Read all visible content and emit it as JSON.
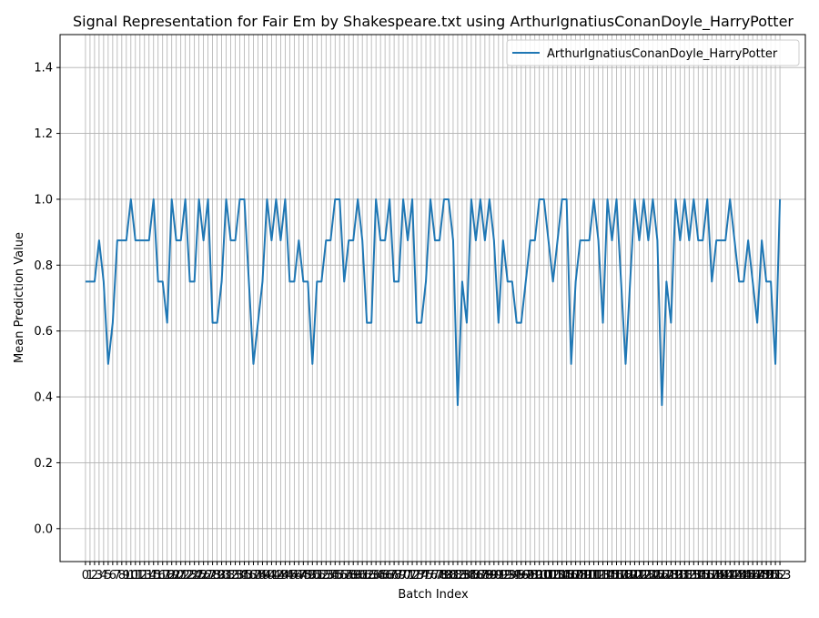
{
  "chart_data": {
    "type": "line",
    "title": "Signal Representation for Fair Em by Shakespeare.txt using ArthurIgnatiusConanDoyle_HarryPotter",
    "xlabel": "Batch Index",
    "ylabel": "Mean Prediction Value",
    "ylim": [
      -0.1,
      1.5
    ],
    "xlim": [
      -5.6,
      158.6
    ],
    "y_ticks": [
      0.0,
      0.2,
      0.4,
      0.6,
      0.8,
      1.0,
      1.2,
      1.4
    ],
    "y_tick_labels": [
      "0.0",
      "0.2",
      "0.4",
      "0.6",
      "0.8",
      "1.0",
      "1.2",
      "1.4"
    ],
    "grid": true,
    "legend_position": "top-right",
    "series": [
      {
        "name": "ArthurIgnatiusConanDoyle_HarryPotter",
        "color": "#1f77b4",
        "x": [
          0,
          1,
          2,
          3,
          4,
          5,
          6,
          7,
          8,
          9,
          10,
          11,
          12,
          13,
          14,
          15,
          16,
          17,
          18,
          19,
          20,
          21,
          22,
          23,
          24,
          25,
          26,
          27,
          28,
          29,
          30,
          31,
          32,
          33,
          34,
          35,
          36,
          37,
          38,
          39,
          40,
          41,
          42,
          43,
          44,
          45,
          46,
          47,
          48,
          49,
          50,
          51,
          52,
          53,
          54,
          55,
          56,
          57,
          58,
          59,
          60,
          61,
          62,
          63,
          64,
          65,
          66,
          67,
          68,
          69,
          70,
          71,
          72,
          73,
          74,
          75,
          76,
          77,
          78,
          79,
          80,
          81,
          82,
          83,
          84,
          85,
          86,
          87,
          88,
          89,
          90,
          91,
          92,
          93,
          94,
          95,
          96,
          97,
          98,
          99,
          100,
          101,
          102,
          103,
          104,
          105,
          106,
          107,
          108,
          109,
          110,
          111,
          112,
          113,
          114,
          115,
          116,
          117,
          118,
          119,
          120,
          121,
          122,
          123,
          124,
          125,
          126,
          127,
          128,
          129,
          130,
          131,
          132,
          133,
          134,
          135,
          136,
          137,
          138,
          139,
          140,
          141,
          142,
          143,
          144,
          145,
          146,
          147,
          148,
          149,
          150,
          151,
          152,
          153
        ],
        "values": [
          0.75,
          0.75,
          0.75,
          0.875,
          0.75,
          0.5,
          0.625,
          0.875,
          0.875,
          0.875,
          1.0,
          0.875,
          0.875,
          0.875,
          0.875,
          1.0,
          0.75,
          0.75,
          0.625,
          1.0,
          0.875,
          0.875,
          1.0,
          0.75,
          0.75,
          1.0,
          0.875,
          1.0,
          0.625,
          0.625,
          0.75,
          1.0,
          0.875,
          0.875,
          1.0,
          1.0,
          0.75,
          0.5,
          0.625,
          0.75,
          1.0,
          0.875,
          1.0,
          0.875,
          1.0,
          0.75,
          0.75,
          0.875,
          0.75,
          0.75,
          0.5,
          0.75,
          0.75,
          0.875,
          0.875,
          1.0,
          1.0,
          0.75,
          0.875,
          0.875,
          1.0,
          0.875,
          0.625,
          0.625,
          1.0,
          0.875,
          0.875,
          1.0,
          0.75,
          0.75,
          1.0,
          0.875,
          1.0,
          0.625,
          0.625,
          0.75,
          1.0,
          0.875,
          0.875,
          1.0,
          1.0,
          0.875,
          0.375,
          0.75,
          0.625,
          1.0,
          0.875,
          1.0,
          0.875,
          1.0,
          0.875,
          0.625,
          0.875,
          0.75,
          0.75,
          0.625,
          0.625,
          0.75,
          0.875,
          0.875,
          1.0,
          1.0,
          0.875,
          0.75,
          0.875,
          1.0,
          1.0,
          0.5,
          0.75,
          0.875,
          0.875,
          0.875,
          1.0,
          0.875,
          0.625,
          1.0,
          0.875,
          1.0,
          0.75,
          0.5,
          0.75,
          1.0,
          0.875,
          1.0,
          0.875,
          1.0,
          0.875,
          0.375,
          0.75,
          0.625,
          1.0,
          0.875,
          1.0,
          0.875,
          1.0,
          0.875,
          0.875,
          1.0,
          0.75,
          0.875,
          0.875,
          0.875,
          1.0,
          0.875,
          0.75,
          0.75,
          0.875,
          0.75,
          0.625,
          0.875,
          0.75,
          0.75,
          0.5,
          1.0
        ]
      }
    ]
  }
}
